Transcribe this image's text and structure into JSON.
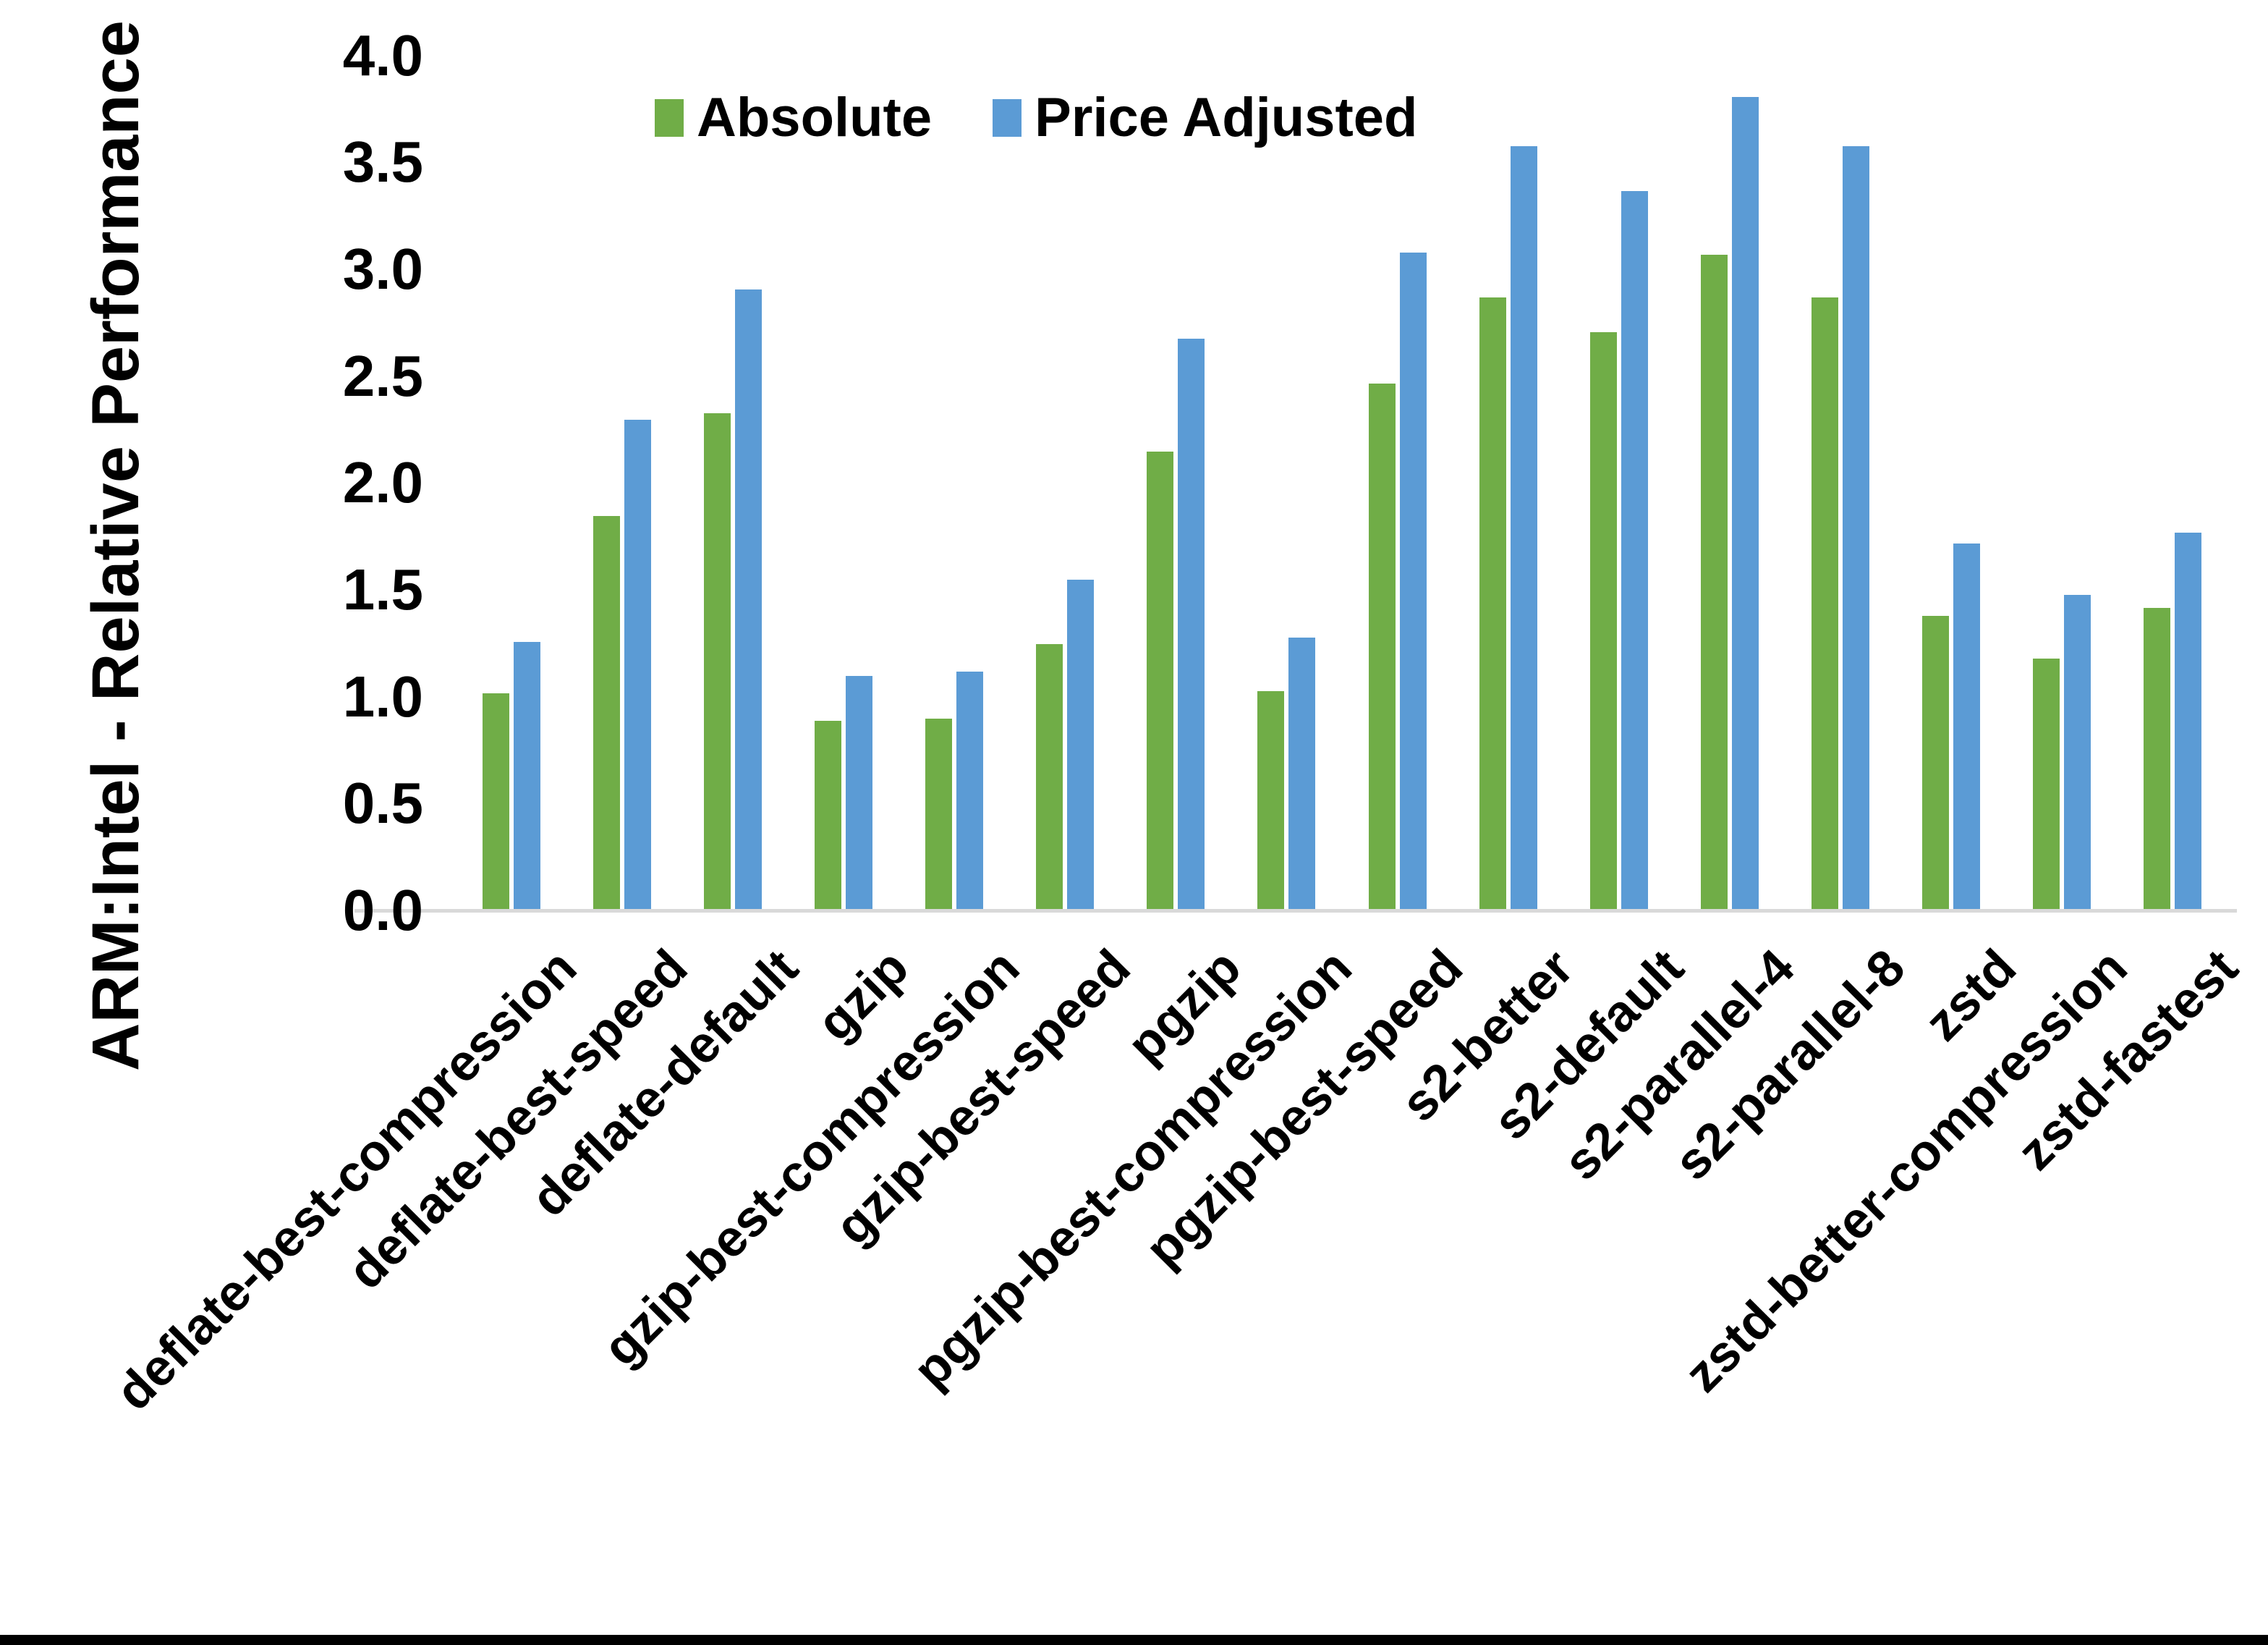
{
  "colors": {
    "absolute": "#70AD47",
    "price_adjusted": "#5B9BD5",
    "axis_line": "#D9D9D9",
    "text": "#000000",
    "background": "#FFFFFF",
    "bottom_border": "#000000"
  },
  "legend": {
    "items": [
      {
        "label": "Absolute",
        "color": "#70AD47"
      },
      {
        "label": "Price Adjusted",
        "color": "#5B9BD5"
      }
    ]
  },
  "chart_data": {
    "type": "bar",
    "title": "",
    "xlabel": "",
    "ylabel": "ARM:Intel - Relative Performance",
    "ylim": [
      0.0,
      4.0
    ],
    "ytick_step": 0.5,
    "ytick_labels": [
      "0.0",
      "0.5",
      "1.0",
      "1.5",
      "2.0",
      "2.5",
      "3.0",
      "3.5",
      "4.0"
    ],
    "grid": false,
    "legend_position": "top-center",
    "categories": [
      "deflate-best-compression",
      "deflate-best-speed",
      "deflate-default",
      "gzip",
      "gzip-best-compression",
      "gzip-best-speed",
      "pgzip",
      "pgzip-best-compression",
      "pgzip-best-speed",
      "s2-better",
      "s2-default",
      "s2-parallel-4",
      "s2-parallel-8",
      "zstd",
      "zstd-better-compression",
      "zstd-fastest"
    ],
    "series": [
      {
        "name": "Absolute",
        "color": "#70AD47",
        "values": [
          1.01,
          1.84,
          2.32,
          0.88,
          0.89,
          1.24,
          2.14,
          1.02,
          2.46,
          2.86,
          2.7,
          3.06,
          2.86,
          1.37,
          1.17,
          1.41
        ]
      },
      {
        "name": "Price Adjusted",
        "color": "#5B9BD5",
        "values": [
          1.25,
          2.29,
          2.9,
          1.09,
          1.11,
          1.54,
          2.67,
          1.27,
          3.07,
          3.57,
          3.36,
          3.8,
          3.57,
          1.71,
          1.47,
          1.76
        ]
      }
    ]
  }
}
